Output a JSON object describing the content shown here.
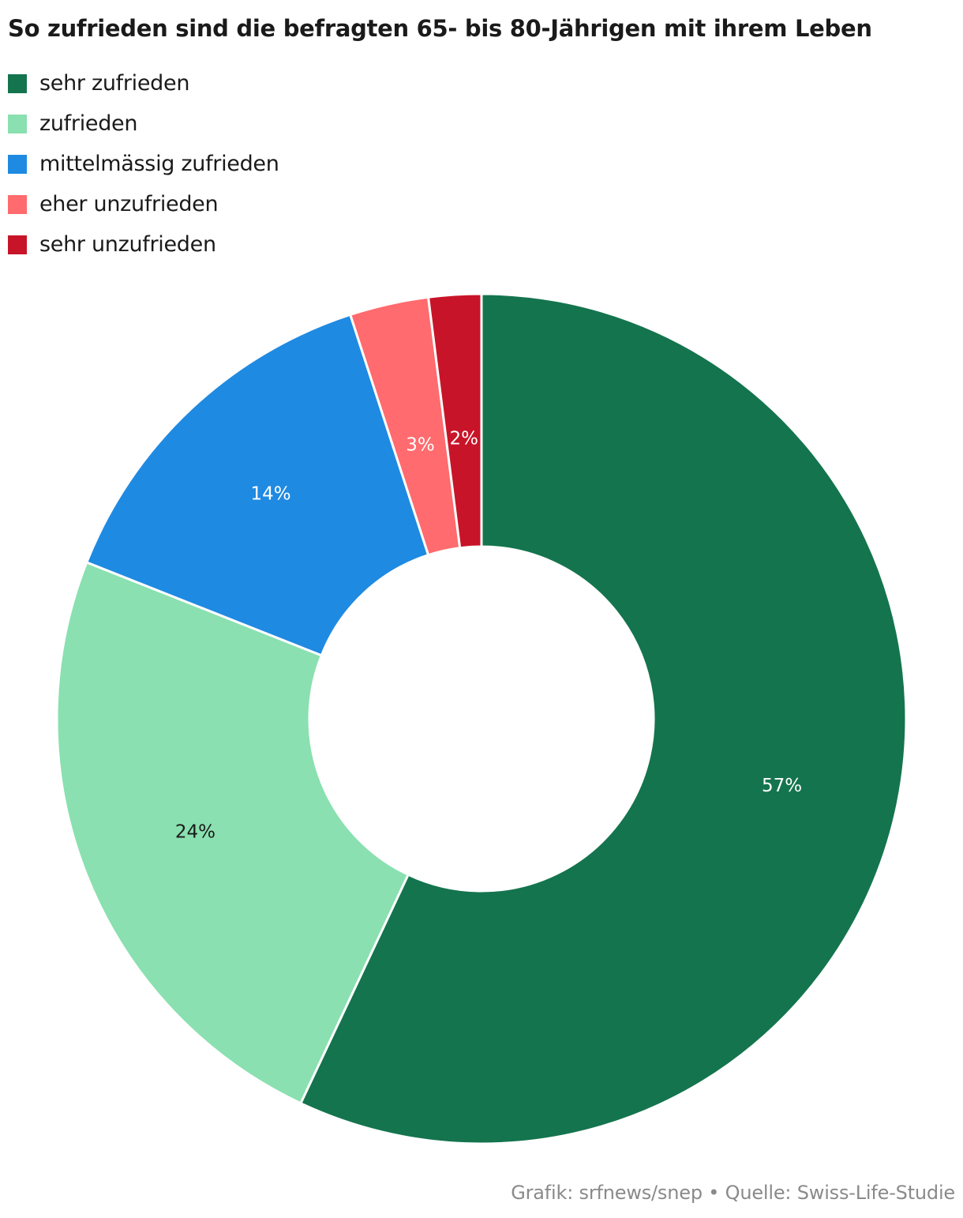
{
  "chart_data": {
    "type": "pie",
    "title": "So zufrieden sind die befragten 65- bis 80-Jährigen mit ihrem Leben",
    "legend_position": "top-left",
    "donut": true,
    "categories": [
      "sehr zufrieden",
      "zufrieden",
      "mittelmässig zufrieden",
      "eher unzufrieden",
      "sehr unzufrieden"
    ],
    "values": [
      57,
      24,
      14,
      3,
      2
    ],
    "value_labels": [
      "57%",
      "24%",
      "14%",
      "3%",
      "2%"
    ],
    "colors": [
      "#14744e",
      "#8ae0b0",
      "#1f8ae2",
      "#ff6b6e",
      "#c81428"
    ],
    "label_colors": [
      "#ffffff",
      "#1a1a1a",
      "#ffffff",
      "#ffffff",
      "#ffffff"
    ],
    "source": "Grafik: srfnews/snep • Quelle: Swiss-Life-Studie"
  }
}
